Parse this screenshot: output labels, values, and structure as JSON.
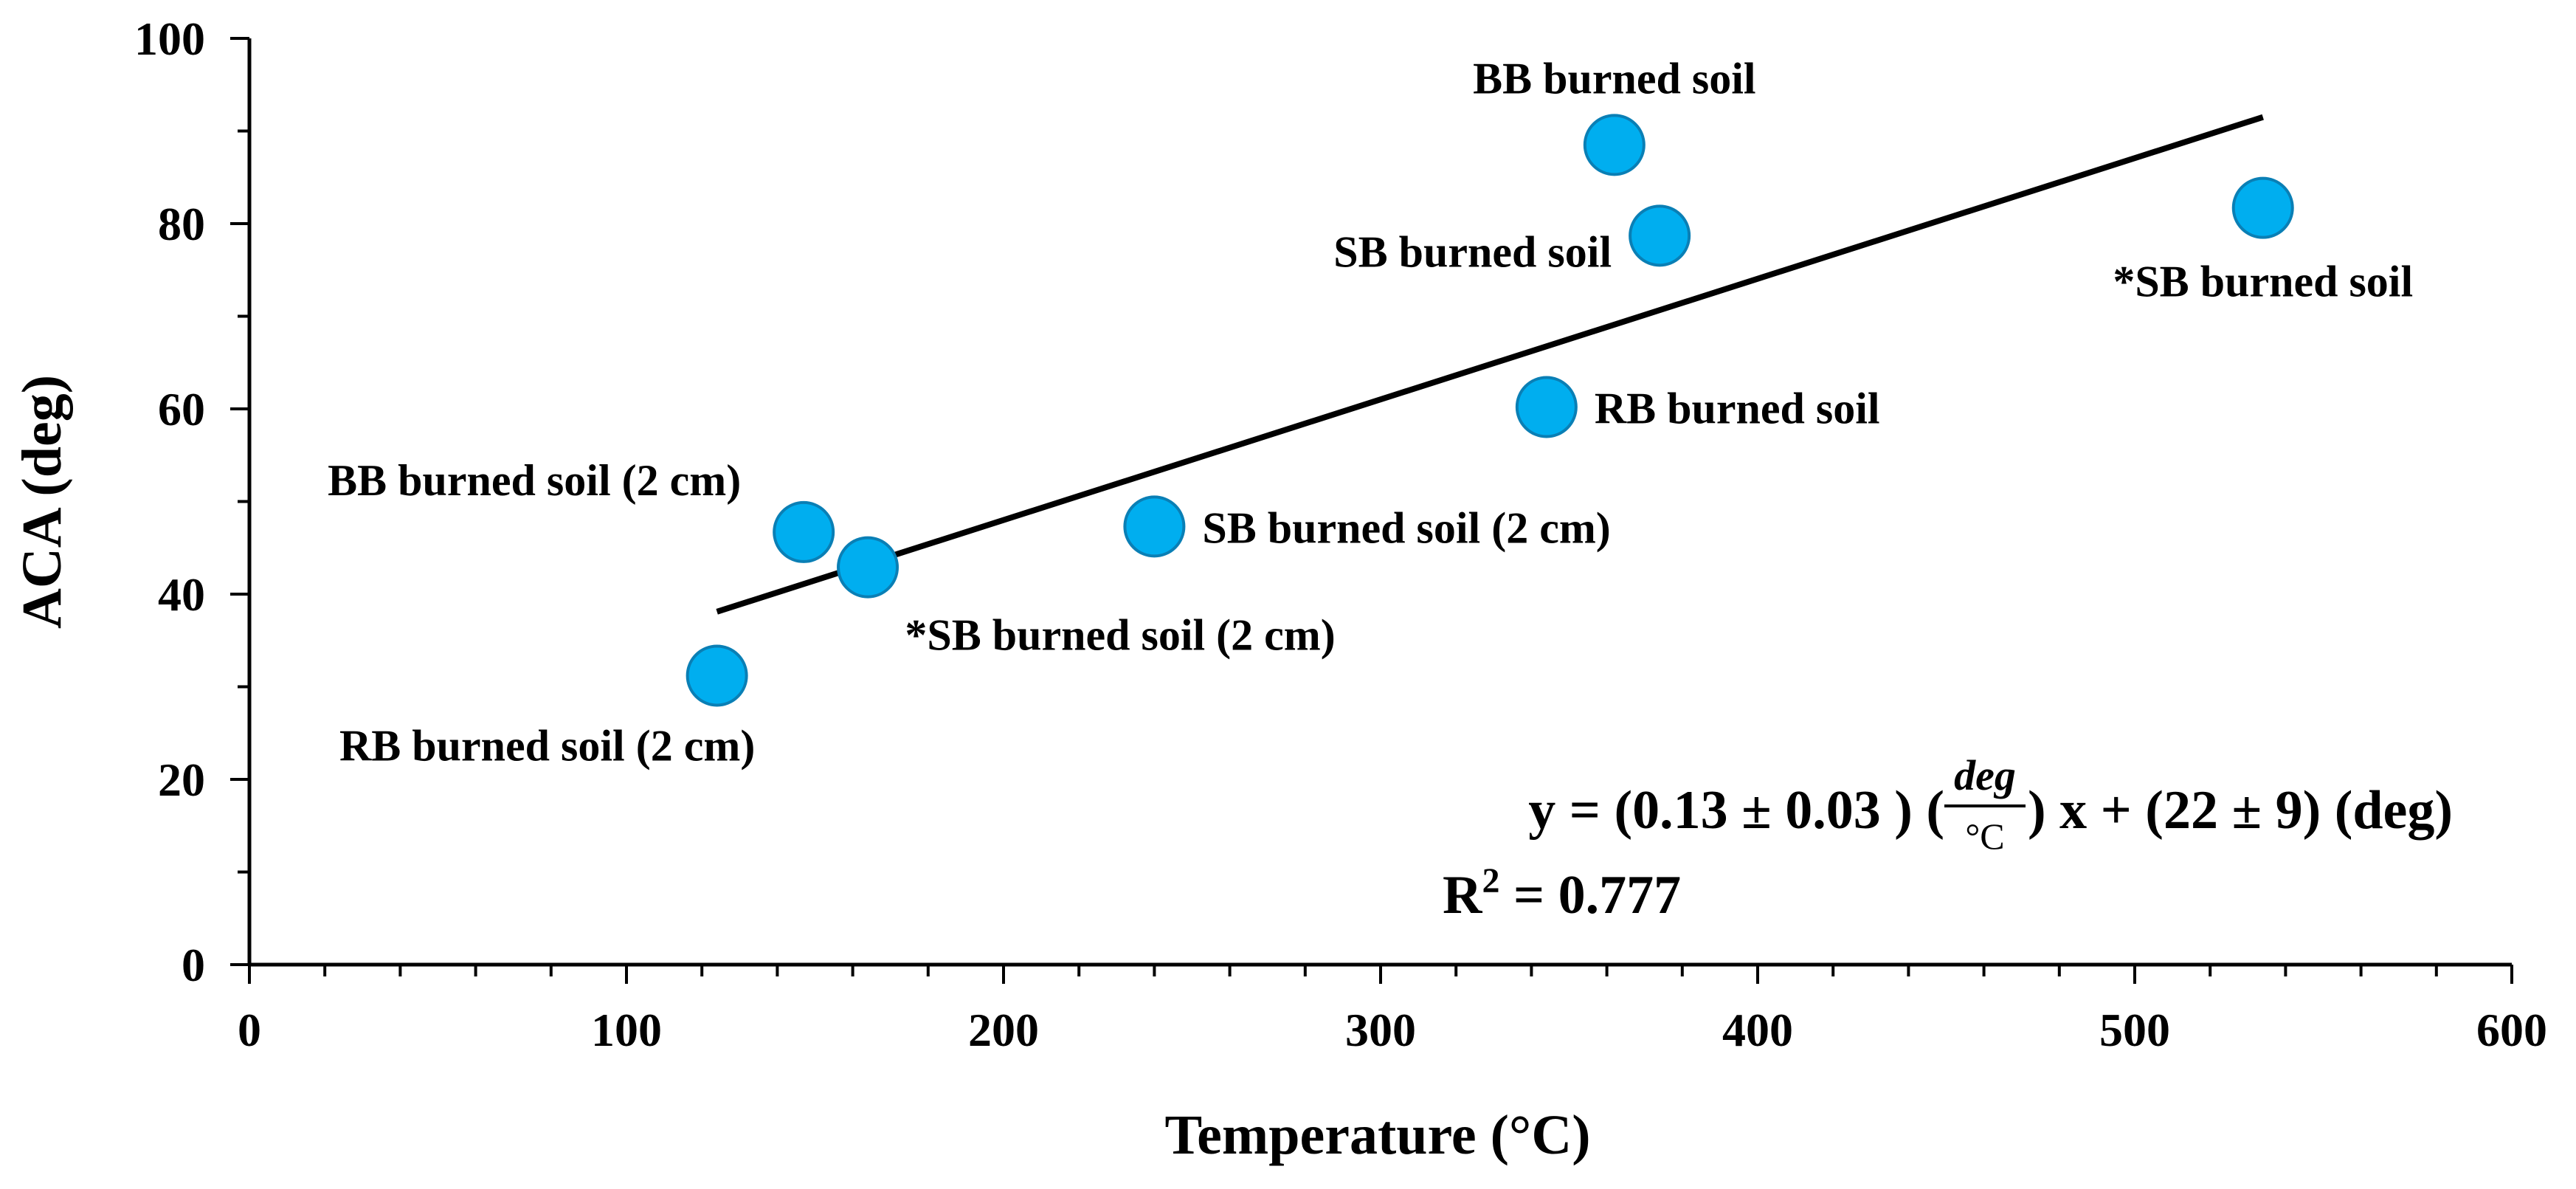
{
  "chart_data": {
    "type": "scatter",
    "xlabel": "Temperature (°C)",
    "ylabel": "ACA (deg)",
    "xlim": [
      0,
      600
    ],
    "ylim": [
      0,
      100
    ],
    "x_ticks": [
      0,
      100,
      200,
      300,
      400,
      500,
      600
    ],
    "y_ticks": [
      0,
      20,
      40,
      60,
      80,
      100
    ],
    "x_tick_labels": [
      "0",
      "100",
      "200",
      "300",
      "400",
      "500",
      "600"
    ],
    "y_tick_labels": [
      "0",
      "20",
      "40",
      "60",
      "80",
      "100"
    ],
    "grid": false,
    "marker_color": "#00AEEF",
    "marker_edge_color": "#0a7fb5",
    "points": [
      {
        "x": 124,
        "y": 31.2,
        "label": "RB burned soil (2 cm)",
        "label_pos": "below-left"
      },
      {
        "x": 147,
        "y": 46.7,
        "label": "BB burned soil (2 cm)",
        "label_pos": "above-left"
      },
      {
        "x": 164,
        "y": 42.9,
        "label": "*SB burned soil (2 cm)",
        "label_pos": "below-right"
      },
      {
        "x": 240,
        "y": 47.3,
        "label": "SB burned soil (2 cm)",
        "label_pos": "right"
      },
      {
        "x": 344,
        "y": 60.2,
        "label": "RB burned soil",
        "label_pos": "right"
      },
      {
        "x": 362,
        "y": 88.5,
        "label": "BB burned soil",
        "label_pos": "above"
      },
      {
        "x": 374,
        "y": 78.7,
        "label": "SB burned soil",
        "label_pos": "left"
      },
      {
        "x": 534,
        "y": 81.7,
        "label": "*SB burned soil",
        "label_pos": "below"
      }
    ],
    "fit_line": {
      "x": [
        124,
        534
      ],
      "y": [
        38.1,
        91.5
      ],
      "color": "#000000"
    },
    "equation": {
      "prefix": "y = (0.13 ± 0.03 ) (",
      "frac_num": "deg",
      "frac_den": "°C",
      "suffix": ") x + (22 ± 9) (deg)",
      "r2_base": "R",
      "r2_sup": "2",
      "r2_rest": " = 0.777"
    }
  }
}
